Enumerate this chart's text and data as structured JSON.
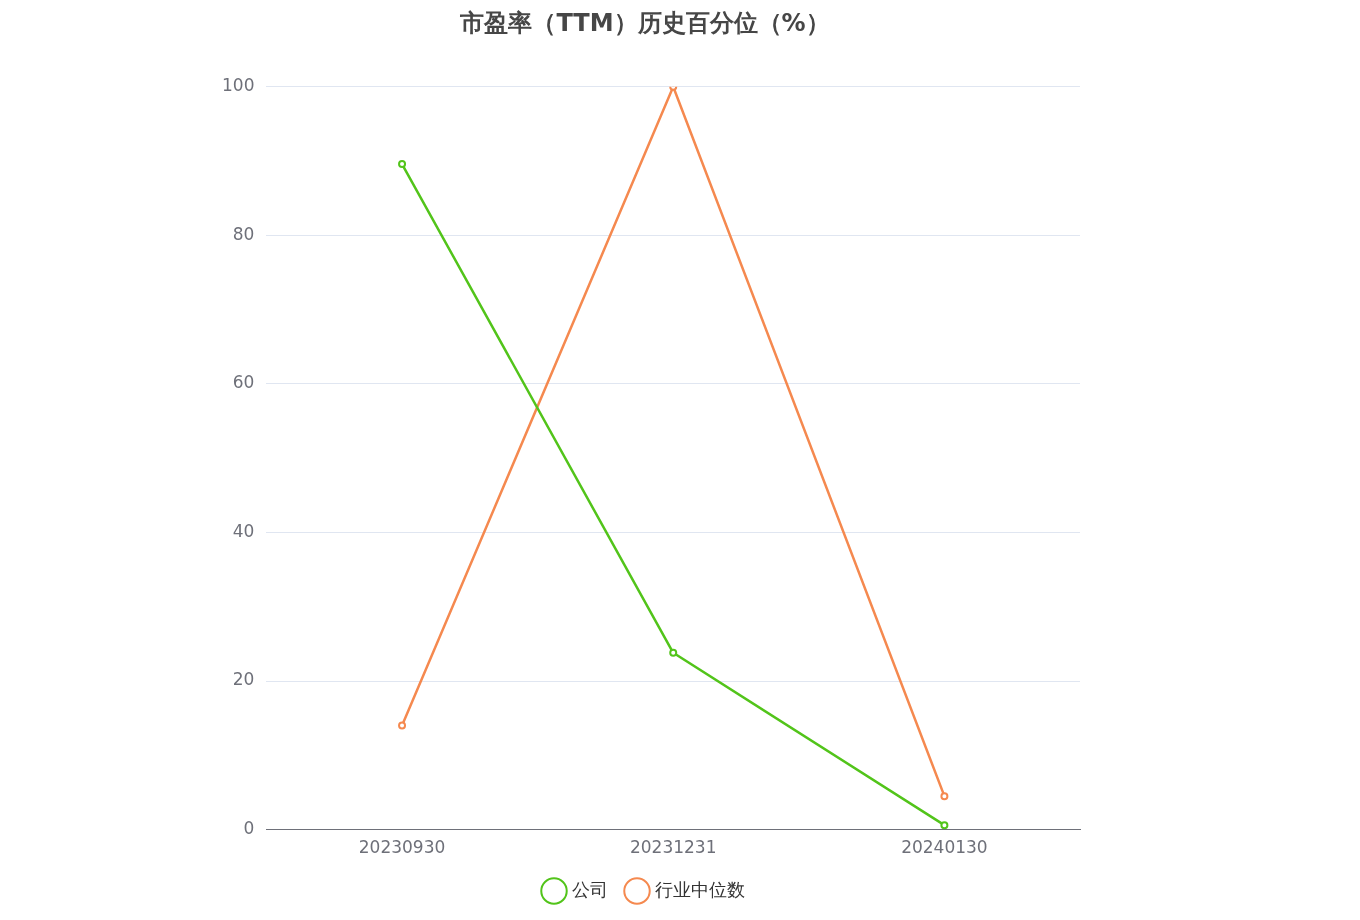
{
  "chart_data": {
    "type": "line",
    "title": "市盈率（TTM）历史百分位（%）",
    "categories": [
      "20230930",
      "20231231",
      "20240130"
    ],
    "series": [
      {
        "name": "公司",
        "color": "#52c41a",
        "values": [
          89.6,
          23.8,
          0.6
        ]
      },
      {
        "name": "行业中位数",
        "color": "#f5894f",
        "values": [
          14.0,
          100,
          4.5
        ]
      }
    ],
    "ylim": [
      0,
      100
    ],
    "yticks": [
      0,
      20,
      40,
      60,
      80,
      100
    ],
    "grid": "y",
    "legend": "bottom",
    "marker": "circle",
    "line_style": "solid"
  }
}
